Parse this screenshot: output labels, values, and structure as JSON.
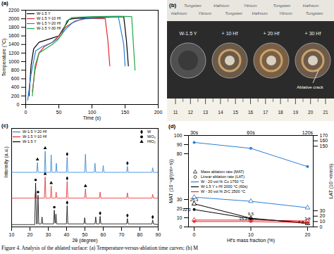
{
  "chart_data": [
    {
      "type": "line",
      "label": "(a)",
      "xlabel": "Time (s)",
      "ylabel": "Temperature (°C)",
      "xlim": [
        0,
        200
      ],
      "xticks": [
        0,
        50,
        100,
        150,
        200
      ],
      "ylim": [
        0,
        2200
      ],
      "yticks": [
        0,
        200,
        400,
        600,
        800,
        1000,
        1200,
        1400,
        1600,
        1800,
        2000,
        2200
      ],
      "legend": "top-left",
      "series": [
        {
          "name": "W-1.5 Y",
          "color": "#000000",
          "x": [
            5,
            8,
            12,
            20,
            30,
            40,
            50,
            60,
            65,
            70,
            90,
            110,
            130,
            148,
            152,
            155
          ],
          "values": [
            200,
            900,
            1300,
            1450,
            1500,
            1550,
            1600,
            1850,
            1980,
            2000,
            2020,
            2030,
            2040,
            2050,
            1500,
            900
          ]
        },
        {
          "name": "W-1.5 Y-10 Hf",
          "color": "#e8262b",
          "x": [
            10,
            14,
            20,
            28,
            40,
            50,
            60,
            75,
            90,
            110,
            120,
            124,
            127
          ],
          "values": [
            300,
            800,
            1200,
            1350,
            1450,
            1600,
            1800,
            1950,
            2000,
            2010,
            2000,
            1500,
            900
          ]
        },
        {
          "name": "W-1.5 Y-20 Hf",
          "color": "#2a7fd4",
          "x": [
            3,
            8,
            15,
            25,
            40,
            50,
            60,
            70,
            85,
            120,
            140,
            148,
            150
          ],
          "values": [
            100,
            700,
            1250,
            1350,
            1450,
            1550,
            1750,
            1900,
            2000,
            2030,
            2040,
            1400,
            900
          ]
        },
        {
          "name": "W-1.5 Y-30 Hf",
          "color": "#1fa64a",
          "x": [
            10,
            14,
            20,
            30,
            40,
            48,
            55,
            62,
            70,
            100,
            140,
            160,
            163,
            165
          ],
          "values": [
            200,
            900,
            1200,
            1300,
            1400,
            1500,
            1650,
            1950,
            2030,
            2050,
            2060,
            2050,
            1300,
            800
          ]
        }
      ]
    },
    {
      "type": "line",
      "label": "(c)",
      "xlabel": "2θ (degree)",
      "ylabel": "Intensity (a.u.)",
      "xlim": [
        10,
        90
      ],
      "xticks": [
        10,
        20,
        30,
        40,
        50,
        60,
        70,
        80,
        90
      ],
      "ylim": [
        0,
        130
      ],
      "tick_labels": "x",
      "legend": "top-left",
      "series": [
        {
          "name": "W-1.5 Y-20 Hf",
          "color": "#2a7fd4",
          "x": [
            10,
            23.7,
            24.1,
            24.5,
            27.9,
            28.3,
            28.7,
            31.2,
            31.6,
            32.0,
            34.0,
            34.4,
            34.8,
            39.9,
            40.3,
            40.7,
            49.9,
            50.3,
            50.7,
            55.1,
            55.5,
            55.9,
            59.6,
            60.0,
            60.4,
            72.8,
            73.2,
            73.6,
            86.6,
            87.0,
            87.4,
            90
          ],
          "values": [
            72,
            72,
            85,
            72,
            72,
            100,
            72,
            72,
            95,
            72,
            72,
            84,
            72,
            72,
            92,
            72,
            72,
            96,
            72,
            72,
            84,
            72,
            72,
            81,
            72,
            72,
            80,
            72,
            72,
            78,
            72,
            72
          ]
        },
        {
          "name": "W-1.5 Y-10 Hf",
          "color": "#e8262b",
          "x": [
            10,
            22.7,
            23.1,
            23.5,
            27.9,
            28.3,
            28.7,
            31.2,
            31.6,
            32.0,
            33.9,
            34.3,
            34.7,
            39.9,
            40.3,
            40.7,
            49.9,
            50.3,
            50.7,
            57.9,
            58.3,
            58.7,
            72.8,
            73.2,
            73.6,
            86.6,
            87.0,
            87.4,
            90
          ],
          "values": [
            38,
            38,
            47,
            38,
            38,
            66,
            38,
            38,
            54,
            38,
            38,
            46,
            38,
            38,
            60,
            38,
            38,
            50,
            38,
            38,
            46,
            38,
            38,
            45,
            38,
            38,
            43,
            38,
            38
          ]
        },
        {
          "name": "W-1.5 Y",
          "color": "#000000",
          "x": [
            10,
            22.6,
            23.1,
            23.6,
            24.0,
            24.4,
            24.8,
            26.2,
            26.6,
            27.0,
            32.9,
            33.3,
            33.7,
            33.9,
            34.2,
            34.6,
            39.9,
            40.3,
            40.7,
            49.5,
            49.9,
            50.3,
            55.5,
            55.9,
            56.3,
            57.9,
            58.3,
            58.7,
            72.8,
            73.2,
            73.6,
            86.6,
            87.0,
            87.4,
            90
          ],
          "values": [
            3,
            3,
            58,
            4,
            4,
            42,
            4,
            4,
            13,
            4,
            4,
            22,
            5,
            5,
            17,
            4,
            4,
            28,
            4,
            4,
            12,
            4,
            4,
            13,
            4,
            4,
            14,
            4,
            4,
            11,
            4,
            4,
            9,
            4,
            3
          ]
        }
      ],
      "phases": [
        {
          "name": "W",
          "marker": "diamond"
        },
        {
          "name": "WO₃",
          "marker": "circle"
        },
        {
          "name": "HfO₂",
          "marker": "triangle"
        }
      ],
      "peak_markers": [
        {
          "x": 23.1,
          "y": 62,
          "phase": "WO₃"
        },
        {
          "x": 24.4,
          "y": 46,
          "phase": "WO₃"
        },
        {
          "x": 33.3,
          "y": 26,
          "phase": "WO₃"
        },
        {
          "x": 40.3,
          "y": 32,
          "phase": "W"
        },
        {
          "x": 58.3,
          "y": 18,
          "phase": "W"
        },
        {
          "x": 73.2,
          "y": 15,
          "phase": "W"
        },
        {
          "x": 87.0,
          "y": 13,
          "phase": "W"
        },
        {
          "x": 28.3,
          "y": 70,
          "phase": "HfO₂"
        },
        {
          "x": 31.6,
          "y": 58,
          "phase": "HfO₂"
        },
        {
          "x": 40.3,
          "y": 64,
          "phase": "W"
        },
        {
          "x": 50.3,
          "y": 54,
          "phase": "HfO₂"
        },
        {
          "x": 24.1,
          "y": 89,
          "phase": "HfO₂"
        },
        {
          "x": 28.3,
          "y": 104,
          "phase": "HfO₂"
        },
        {
          "x": 40.3,
          "y": 96,
          "phase": "W"
        },
        {
          "x": 73.2,
          "y": 84,
          "phase": "W"
        }
      ]
    },
    {
      "type": "line",
      "label": "(d)",
      "xlabel": "Hf's mass fraction (%)",
      "ylabel": "MAT (10⁻³g/(cm²·s))",
      "y2label": "LAT (10⁻³mm/s)",
      "x": [
        0,
        10,
        20
      ],
      "xlim": [
        -1,
        21
      ],
      "xticks": [
        0,
        10,
        20
      ],
      "x2ticks": [
        {
          "value": 0,
          "label": "30s"
        },
        {
          "value": 10,
          "label": "60s"
        },
        {
          "value": 20,
          "label": "120s"
        }
      ],
      "ylim": [
        0,
        100
      ],
      "yticks": [
        0,
        10,
        20,
        30,
        80,
        90,
        100
      ],
      "y2lim": [
        0,
        170
      ],
      "y2ticks": [
        0,
        10,
        20,
        30,
        150,
        160,
        170
      ],
      "legend": "left",
      "measures": [
        {
          "name": "Mass ablation rate (MAT)",
          "marker": "triangle"
        },
        {
          "name": "Linear ablation rate (LAT)",
          "marker": "circle"
        }
      ],
      "series": [
        {
          "name": "W - 20 vol.% Cu 1750 °C",
          "color": "#2a7fd4",
          "mat": [
            32.5,
            28,
            21
          ],
          "lat": [
            157,
            146,
            112
          ],
          "data_labels": false
        },
        {
          "name": "W-1.5 Y x Hf 2000 °C (60s)",
          "color": "#000000",
          "mat": [
            25.3,
            9.5,
            3.8
          ],
          "lat": [
            32.3,
            15.2,
            7.8
          ],
          "data_labels": true
        },
        {
          "name": "W - 30 vol.% ZrC 2500 °C",
          "color": "#e8262b",
          "mat": [
            7.5,
            7.5,
            6.5
          ],
          "lat": [
            10,
            10,
            8
          ],
          "data_labels": false
        }
      ]
    }
  ],
  "photo": {
    "label": "(b)",
    "background_text": [
      [
        "Tungsten",
        "Hafnium",
        "Yttrium",
        "Tungsten",
        "Hafnium"
      ],
      [
        "Hafnium",
        "Yttrium",
        "Tungsten",
        "Hafnium",
        "Yttrium",
        "Tungsten"
      ]
    ],
    "sample_labels": [
      "W-1.5 Y",
      "+ 10 Hf",
      "+ 20 Hf",
      "+ 30 Hf"
    ],
    "annotation": "Ablative crack",
    "ruler": [
      11,
      12,
      13,
      14,
      15,
      16,
      17,
      18,
      19,
      20,
      21
    ]
  },
  "caption": "Figure 4. Analysis of the ablated surface: (a) Temperature-versus-ablation time curves; (b) M"
}
